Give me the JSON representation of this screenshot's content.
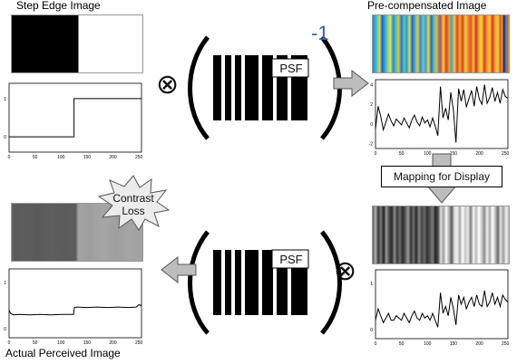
{
  "captions": {
    "step_edge_image": "Step Edge Image",
    "precompensated_image": "Pre-compensated Image",
    "actual_perceived_image": "Actual Perceived Image",
    "mapping_for_display": "Mapping for Display",
    "contrast_loss": [
      "Contrast",
      "Loss"
    ],
    "psf_label": "PSF",
    "inverse_exponent": "-1",
    "convolution_symbol": "⊗"
  },
  "colors": {
    "inverse_exponent": "#3b5fa8",
    "arrow_fill": "#bdbdbd",
    "arrow_stroke": "#555555",
    "panel_border": "#999999"
  },
  "plot_ticks": {
    "x_ticks": [
      "0",
      "50",
      "100",
      "150",
      "200",
      "250"
    ],
    "step_edge_y_ticks": [
      "0",
      "1"
    ],
    "precompensated_y_ticks": [
      "-2",
      "0",
      "2",
      "4"
    ],
    "mapped_y_ticks": [
      "0",
      "1"
    ],
    "perceived_y_ticks": [
      "0",
      "1"
    ]
  },
  "chart_data": [
    {
      "type": "line",
      "name": "step-edge-profile",
      "x": [
        0,
        125,
        125,
        255
      ],
      "y": [
        0,
        0,
        1,
        1
      ],
      "xlim": [
        0,
        255
      ],
      "ylim": [
        -0.4,
        1.4
      ]
    },
    {
      "type": "line",
      "name": "precompensated-profile",
      "x": [
        0,
        5,
        10,
        15,
        20,
        25,
        30,
        35,
        40,
        45,
        50,
        55,
        60,
        65,
        70,
        75,
        80,
        85,
        90,
        95,
        100,
        105,
        110,
        115,
        120,
        125,
        130,
        135,
        140,
        145,
        150,
        155,
        160,
        165,
        170,
        175,
        180,
        185,
        190,
        195,
        200,
        205,
        210,
        215,
        220,
        225,
        230,
        235,
        240,
        245,
        250,
        255
      ],
      "y": [
        -0.5,
        1.8,
        0.8,
        -0.6,
        0.2,
        1.0,
        0.3,
        -0.2,
        0.5,
        0.2,
        -0.1,
        0.6,
        0.1,
        -0.4,
        0.4,
        0.9,
        0.2,
        -0.2,
        0.7,
        0.1,
        0.4,
        -0.3,
        0.6,
        -0.2,
        -1.2,
        3.8,
        0.6,
        1.6,
        0.4,
        3.2,
        1.4,
        -1.9,
        3.6,
        2.3,
        3.5,
        1.7,
        2.6,
        3.4,
        1.8,
        3.8,
        2.5,
        2.0,
        4.0,
        2.1,
        2.7,
        3.7,
        2.3,
        3.2,
        2.1,
        3.5,
        2.8,
        2.6
      ],
      "xlim": [
        0,
        255
      ],
      "ylim": [
        -2.5,
        4.5
      ]
    },
    {
      "type": "line",
      "name": "mapped-display-profile",
      "x": [
        0,
        5,
        10,
        15,
        20,
        25,
        30,
        35,
        40,
        45,
        50,
        55,
        60,
        65,
        70,
        75,
        80,
        85,
        90,
        95,
        100,
        105,
        110,
        115,
        120,
        125,
        130,
        135,
        140,
        145,
        150,
        155,
        160,
        165,
        170,
        175,
        180,
        185,
        190,
        195,
        200,
        205,
        210,
        215,
        220,
        225,
        230,
        235,
        240,
        245,
        250,
        255
      ],
      "y": [
        0.2,
        0.45,
        0.3,
        0.15,
        0.25,
        0.35,
        0.2,
        0.2,
        0.3,
        0.25,
        0.2,
        0.35,
        0.25,
        0.15,
        0.3,
        0.4,
        0.25,
        0.2,
        0.35,
        0.25,
        0.3,
        0.2,
        0.35,
        0.2,
        0.05,
        0.8,
        0.35,
        0.5,
        0.3,
        0.7,
        0.45,
        0.1,
        0.75,
        0.55,
        0.7,
        0.45,
        0.6,
        0.7,
        0.5,
        0.75,
        0.55,
        0.5,
        0.85,
        0.5,
        0.6,
        0.8,
        0.55,
        0.7,
        0.5,
        0.75,
        0.65,
        0.6
      ],
      "xlim": [
        0,
        255
      ],
      "ylim": [
        -0.2,
        1.3
      ]
    },
    {
      "type": "line",
      "name": "perceived-profile",
      "x": [
        0,
        3,
        8,
        20,
        40,
        60,
        80,
        100,
        120,
        124,
        126,
        130,
        150,
        170,
        190,
        210,
        230,
        245,
        250,
        255
      ],
      "y": [
        0.4,
        0.33,
        0.3,
        0.31,
        0.3,
        0.31,
        0.3,
        0.31,
        0.31,
        0.31,
        0.46,
        0.47,
        0.46,
        0.47,
        0.46,
        0.47,
        0.46,
        0.47,
        0.52,
        0.5
      ],
      "xlim": [
        0,
        255
      ],
      "ylim": [
        -0.2,
        1.3
      ]
    }
  ]
}
